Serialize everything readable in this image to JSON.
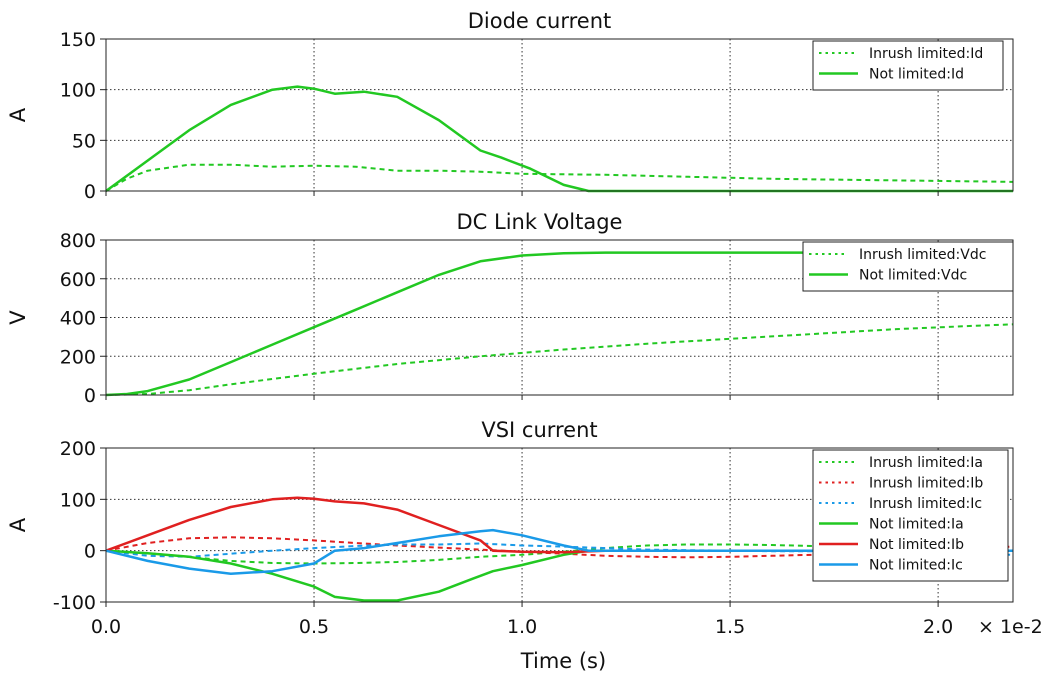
{
  "chart_data": [
    {
      "type": "line",
      "title": "Diode current",
      "xlabel": "",
      "ylabel": "A",
      "xlim": [
        0,
        2.18
      ],
      "ylim": [
        0,
        150
      ],
      "xticks": [
        0.0,
        0.5,
        1.0,
        1.5,
        2.0
      ],
      "yticks": [
        0,
        50,
        100,
        150
      ],
      "ytick_labels": [
        "0",
        "50",
        "100",
        "150"
      ],
      "grid": true,
      "legend": "top-right",
      "series": [
        {
          "name": "Inrush limited:Id",
          "color": "#22c822",
          "style": "dotted",
          "x": [
            0,
            0.05,
            0.1,
            0.2,
            0.3,
            0.4,
            0.5,
            0.6,
            0.7,
            0.8,
            0.9,
            1.0,
            1.2,
            1.4,
            1.6,
            1.8,
            2.0,
            2.18
          ],
          "y": [
            0,
            12,
            20,
            26,
            26,
            24,
            25,
            24,
            20,
            20,
            19,
            17,
            16,
            14,
            12,
            11,
            10,
            9
          ]
        },
        {
          "name": "Not limited:Id",
          "color": "#22c822",
          "style": "solid",
          "x": [
            0,
            0.1,
            0.2,
            0.3,
            0.4,
            0.46,
            0.5,
            0.55,
            0.62,
            0.7,
            0.8,
            0.9,
            0.95,
            1.02,
            1.1,
            1.16,
            1.5,
            2.18
          ],
          "y": [
            0,
            30,
            60,
            85,
            100,
            103,
            101,
            96,
            98,
            93,
            70,
            40,
            33,
            22,
            6,
            0,
            0,
            0
          ]
        }
      ]
    },
    {
      "type": "line",
      "title": "DC Link Voltage",
      "xlabel": "",
      "ylabel": "V",
      "xlim": [
        0,
        2.18
      ],
      "ylim": [
        0,
        800
      ],
      "xticks": [
        0.0,
        0.5,
        1.0,
        1.5,
        2.0
      ],
      "yticks": [
        0,
        200,
        400,
        600,
        800
      ],
      "ytick_labels": [
        "0",
        "200",
        "400",
        "600",
        "800"
      ],
      "grid": true,
      "legend": "top-right",
      "series": [
        {
          "name": "Inrush limited:Vdc",
          "color": "#22c822",
          "style": "dotted",
          "x": [
            0,
            0.1,
            0.2,
            0.3,
            0.5,
            0.7,
            0.9,
            1.1,
            1.3,
            1.5,
            1.7,
            1.9,
            2.1,
            2.18
          ],
          "y": [
            0,
            5,
            25,
            55,
            110,
            160,
            200,
            235,
            265,
            290,
            315,
            340,
            358,
            365
          ]
        },
        {
          "name": "Not limited:Vdc",
          "color": "#22c822",
          "style": "solid",
          "x": [
            0,
            0.05,
            0.1,
            0.2,
            0.3,
            0.4,
            0.5,
            0.6,
            0.7,
            0.8,
            0.9,
            1.0,
            1.1,
            1.2,
            1.5,
            2.18
          ],
          "y": [
            0,
            5,
            20,
            80,
            170,
            260,
            350,
            440,
            530,
            620,
            690,
            720,
            732,
            735,
            735,
            735
          ]
        }
      ]
    },
    {
      "type": "line",
      "title": "VSI current",
      "xlabel": "Time (s)",
      "ylabel": "A",
      "xlim": [
        0,
        2.18
      ],
      "ylim": [
        -100,
        200
      ],
      "xticks": [
        0.0,
        0.5,
        1.0,
        1.5,
        2.0
      ],
      "xtick_labels": [
        "0.0",
        "0.5",
        "1.0",
        "1.5",
        "2.0"
      ],
      "x_scale_label": "× 1e-2",
      "yticks": [
        -100,
        0,
        100,
        200
      ],
      "ytick_labels": [
        "-100",
        "0",
        "100",
        "200"
      ],
      "grid": true,
      "legend": "top-right",
      "series": [
        {
          "name": "Inrush limited:Ia",
          "color": "#22c822",
          "style": "dotted",
          "x": [
            0,
            0.1,
            0.2,
            0.3,
            0.4,
            0.5,
            0.6,
            0.7,
            0.8,
            0.9,
            1.0,
            1.1,
            1.2,
            1.3,
            1.4,
            1.5,
            1.6,
            1.7,
            1.8,
            2.0,
            2.18
          ],
          "y": [
            0,
            -5,
            -12,
            -20,
            -24,
            -25,
            -24,
            -22,
            -18,
            -12,
            -8,
            -2,
            5,
            10,
            12,
            12,
            11,
            9,
            6,
            2,
            0
          ]
        },
        {
          "name": "Inrush limited:Ib",
          "color": "#e02020",
          "style": "dotted",
          "x": [
            0,
            0.1,
            0.2,
            0.3,
            0.4,
            0.5,
            0.6,
            0.7,
            0.8,
            0.9,
            1.0,
            1.1,
            1.2,
            1.3,
            1.4,
            1.5,
            1.6,
            1.7,
            1.8,
            2.0,
            2.18
          ],
          "y": [
            0,
            15,
            24,
            26,
            24,
            20,
            15,
            10,
            6,
            2,
            -2,
            -6,
            -10,
            -12,
            -13,
            -12,
            -10,
            -8,
            -4,
            3,
            8
          ]
        },
        {
          "name": "Inrush limited:Ic",
          "color": "#1a9ae8",
          "style": "dotted",
          "x": [
            0,
            0.1,
            0.2,
            0.3,
            0.4,
            0.5,
            0.6,
            0.7,
            0.8,
            0.9,
            1.0,
            1.1,
            1.2,
            1.3,
            1.4,
            1.5,
            1.6,
            1.7,
            1.8,
            2.0,
            2.18
          ],
          "y": [
            0,
            -10,
            -12,
            -6,
            0,
            5,
            9,
            12,
            12,
            14,
            10,
            8,
            5,
            2,
            1,
            0,
            -1,
            -1,
            -2,
            -5,
            -8
          ]
        },
        {
          "name": "Not limited:Ia",
          "color": "#22c822",
          "style": "solid",
          "x": [
            0,
            0.1,
            0.2,
            0.3,
            0.4,
            0.5,
            0.55,
            0.62,
            0.7,
            0.8,
            0.88,
            0.93,
            1.0,
            1.1,
            1.16,
            2.18
          ],
          "y": [
            0,
            -5,
            -12,
            -25,
            -45,
            -70,
            -90,
            -97,
            -97,
            -80,
            -55,
            -40,
            -28,
            -8,
            0,
            0
          ]
        },
        {
          "name": "Not limited:Ib",
          "color": "#e02020",
          "style": "solid",
          "x": [
            0,
            0.1,
            0.2,
            0.3,
            0.4,
            0.46,
            0.5,
            0.55,
            0.62,
            0.7,
            0.8,
            0.9,
            0.93,
            1.0,
            1.1,
            1.2,
            2.18
          ],
          "y": [
            0,
            30,
            60,
            85,
            100,
            103,
            101,
            96,
            92,
            80,
            50,
            20,
            0,
            -2,
            -3,
            0,
            0
          ]
        },
        {
          "name": "Not limited:Ic",
          "color": "#1a9ae8",
          "style": "solid",
          "x": [
            0,
            0.1,
            0.2,
            0.3,
            0.4,
            0.5,
            0.55,
            0.62,
            0.7,
            0.8,
            0.9,
            0.93,
            1.0,
            1.1,
            1.16,
            2.18
          ],
          "y": [
            0,
            -20,
            -35,
            -45,
            -40,
            -25,
            0,
            5,
            15,
            28,
            38,
            40,
            30,
            10,
            0,
            0
          ]
        }
      ]
    }
  ]
}
